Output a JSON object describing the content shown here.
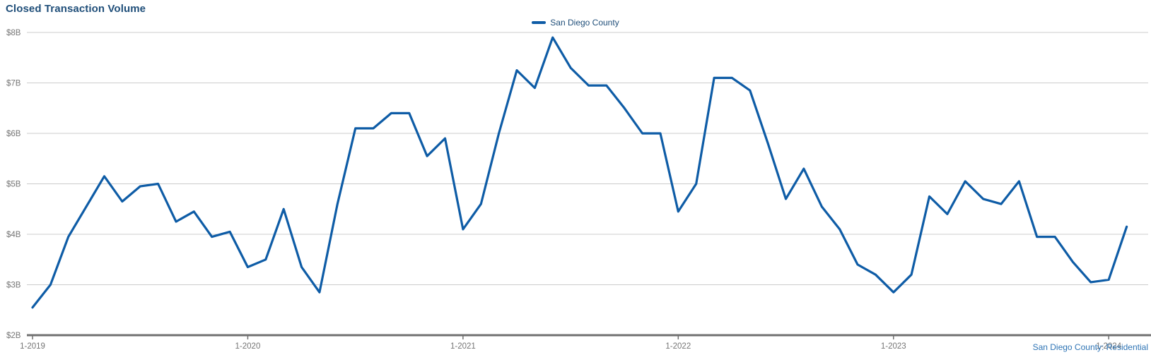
{
  "title": "Closed Transaction Volume",
  "legend": {
    "series_label": "San Diego County"
  },
  "footer": "San Diego County: Residential",
  "colors": {
    "line": "#0e5ca6",
    "title_text": "#1f4e79",
    "legend_text": "#1f4e79",
    "axis_label_text": "#757575",
    "gridline": "#cccccc",
    "axis_line": "#707070",
    "footer_text": "#2e74b5"
  },
  "chart_data": {
    "type": "line",
    "title": "Closed Transaction Volume",
    "unit": "$B",
    "ylim": [
      2,
      8
    ],
    "grid": "horizontal",
    "legend_position": "top-center",
    "y_ticks": [
      {
        "label": "$8B",
        "value": 8
      },
      {
        "label": "$7B",
        "value": 7
      },
      {
        "label": "$6B",
        "value": 6
      },
      {
        "label": "$5B",
        "value": 5
      },
      {
        "label": "$4B",
        "value": 4
      },
      {
        "label": "$3B",
        "value": 3
      },
      {
        "label": "$2B",
        "value": 2
      }
    ],
    "x_ticks": [
      {
        "label": "1-2019",
        "month_index": 0
      },
      {
        "label": "1-2020",
        "month_index": 12
      },
      {
        "label": "1-2021",
        "month_index": 24
      },
      {
        "label": "1-2022",
        "month_index": 36
      },
      {
        "label": "1-2023",
        "month_index": 48
      },
      {
        "label": "1-2024",
        "month_index": 60
      }
    ],
    "months": [
      "2019-01",
      "2019-02",
      "2019-03",
      "2019-04",
      "2019-05",
      "2019-06",
      "2019-07",
      "2019-08",
      "2019-09",
      "2019-10",
      "2019-11",
      "2019-12",
      "2020-01",
      "2020-02",
      "2020-03",
      "2020-04",
      "2020-05",
      "2020-06",
      "2020-07",
      "2020-08",
      "2020-09",
      "2020-10",
      "2020-11",
      "2020-12",
      "2021-01",
      "2021-02",
      "2021-03",
      "2021-04",
      "2021-05",
      "2021-06",
      "2021-07",
      "2021-08",
      "2021-09",
      "2021-10",
      "2021-11",
      "2021-12",
      "2022-01",
      "2022-02",
      "2022-03",
      "2022-04",
      "2022-05",
      "2022-06",
      "2022-07",
      "2022-08",
      "2022-09",
      "2022-10",
      "2022-11",
      "2022-12",
      "2023-01",
      "2023-02",
      "2023-03",
      "2023-04",
      "2023-05",
      "2023-06",
      "2023-07",
      "2023-08",
      "2023-09",
      "2023-10",
      "2023-11",
      "2023-12",
      "2024-01",
      "2024-02"
    ],
    "series": [
      {
        "name": "San Diego County",
        "color": "#0e5ca6",
        "values": [
          2.55,
          3.0,
          3.95,
          4.55,
          5.15,
          4.65,
          4.95,
          5.0,
          4.25,
          4.45,
          3.95,
          4.05,
          3.35,
          3.5,
          4.5,
          3.35,
          2.85,
          4.6,
          6.1,
          6.1,
          6.4,
          6.4,
          5.55,
          5.9,
          4.1,
          4.6,
          6.0,
          7.25,
          6.9,
          7.9,
          7.3,
          6.95,
          6.95,
          6.5,
          6.0,
          6.0,
          4.45,
          5.0,
          7.1,
          7.1,
          6.85,
          5.8,
          4.7,
          5.3,
          4.55,
          4.1,
          3.4,
          3.2,
          2.85,
          3.2,
          4.75,
          4.4,
          5.05,
          4.7,
          4.6,
          5.05,
          3.95,
          3.95,
          3.45,
          3.05,
          3.1,
          4.15
        ]
      }
    ]
  }
}
